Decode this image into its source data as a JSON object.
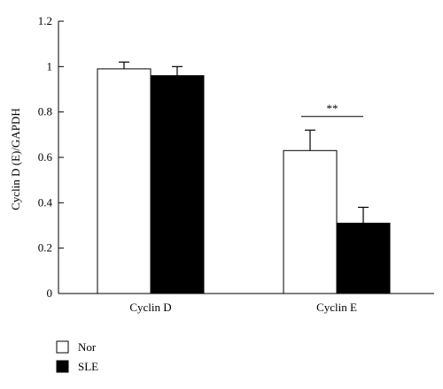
{
  "chart_data": {
    "type": "bar",
    "categories": [
      "Cyclin D",
      "Cyclin E"
    ],
    "series": [
      {
        "name": "Nor",
        "values": [
          0.99,
          0.63
        ],
        "errors": [
          0.03,
          0.09
        ],
        "color": "#ffffff"
      },
      {
        "name": "SLE",
        "values": [
          0.96,
          0.31
        ],
        "errors": [
          0.04,
          0.07
        ],
        "color": "#000000"
      }
    ],
    "ylabel": "Cyclin D (E)/GAPDH",
    "xlabel": "",
    "ylim": [
      0,
      1.2
    ],
    "yticks": [
      0,
      0.2,
      0.4,
      0.6,
      0.8,
      1,
      1.2
    ],
    "ytick_labels": [
      "0",
      "0.2",
      "0.4",
      "0.6",
      "0.8",
      "1",
      "1.2"
    ],
    "grid": false,
    "legend_position": "bottom-left",
    "annotations": [
      {
        "text": "**",
        "category": "Cyclin E"
      }
    ]
  }
}
